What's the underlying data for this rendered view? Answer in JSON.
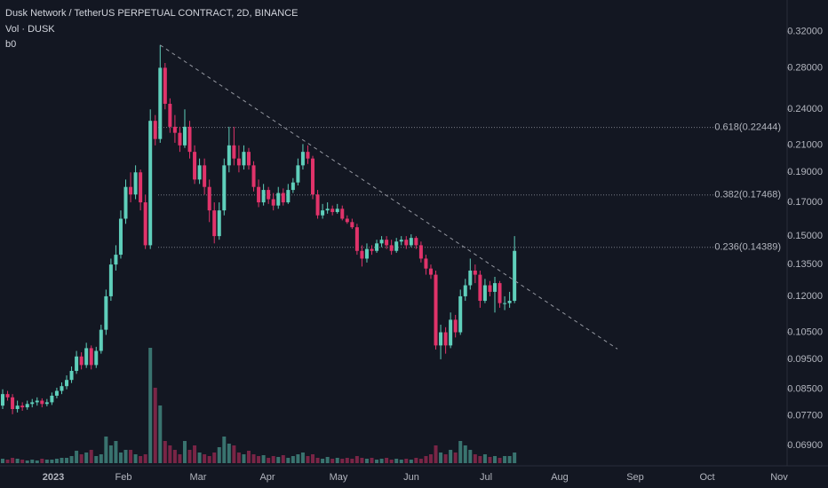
{
  "chart_data": {
    "type": "candlestick",
    "title": "Dusk Network / TetherUS PERPETUAL CONTRACT, 2D, BINANCE",
    "subtitle": "Vol · DUSK",
    "indicator_label": "b0",
    "up_color": "#5fcfbb",
    "down_color": "#e0336a",
    "yscale": "log",
    "ylim": [
      0.064,
      0.36
    ],
    "yticks": [
      {
        "value": 0.32,
        "label": "0.32000"
      },
      {
        "value": 0.28,
        "label": "0.28000"
      },
      {
        "value": 0.24,
        "label": "0.24000"
      },
      {
        "value": 0.21,
        "label": "0.21000"
      },
      {
        "value": 0.19,
        "label": "0.19000"
      },
      {
        "value": 0.17,
        "label": "0.17000"
      },
      {
        "value": 0.15,
        "label": "0.15000"
      },
      {
        "value": 0.135,
        "label": "0.13500"
      },
      {
        "value": 0.12,
        "label": "0.12000"
      },
      {
        "value": 0.105,
        "label": "0.10500"
      },
      {
        "value": 0.095,
        "label": "0.09500"
      },
      {
        "value": 0.085,
        "label": "0.08500"
      },
      {
        "value": 0.077,
        "label": "0.07700"
      },
      {
        "value": 0.069,
        "label": "0.06900"
      }
    ],
    "xtick_labels": [
      "2023",
      "Feb",
      "Mar",
      "Apr",
      "May",
      "Jun",
      "Jul",
      "Aug",
      "Sep",
      "Oct",
      "Nov"
    ],
    "fib_levels": [
      {
        "value": 0.22444,
        "label": "0.618(0.22444)"
      },
      {
        "value": 0.17468,
        "label": "0.382(0.17468)"
      },
      {
        "value": 0.14389,
        "label": "0.236(0.14389)"
      }
    ],
    "trendline": {
      "start": 0.3046,
      "end": 0.0987
    },
    "open": [
      0.08,
      0.0835,
      0.0825,
      0.079,
      0.08,
      0.0795,
      0.0805,
      0.081,
      0.0815,
      0.0805,
      0.081,
      0.083,
      0.0845,
      0.086,
      0.088,
      0.091,
      0.096,
      0.093,
      0.099,
      0.093,
      0.098,
      0.106,
      0.12,
      0.135,
      0.14,
      0.16,
      0.18,
      0.175,
      0.19,
      0.17,
      0.145,
      0.23,
      0.215,
      0.28,
      0.245,
      0.225,
      0.22,
      0.21,
      0.225,
      0.205,
      0.185,
      0.195,
      0.18,
      0.165,
      0.15,
      0.165,
      0.195,
      0.21,
      0.2,
      0.195,
      0.205,
      0.195,
      0.18,
      0.17,
      0.178,
      0.172,
      0.168,
      0.176,
      0.17,
      0.178,
      0.183,
      0.195,
      0.205,
      0.2,
      0.175,
      0.162,
      0.165,
      0.166,
      0.164,
      0.166,
      0.16,
      0.158,
      0.155,
      0.142,
      0.138,
      0.143,
      0.142,
      0.146,
      0.148,
      0.145,
      0.142,
      0.147,
      0.148,
      0.145,
      0.149,
      0.145,
      0.138,
      0.133,
      0.13,
      0.1,
      0.105,
      0.1,
      0.11,
      0.105,
      0.12,
      0.125,
      0.132,
      0.13,
      0.118,
      0.125,
      0.122,
      0.126,
      0.117,
      0.117,
      0.118
    ],
    "high": [
      0.085,
      0.0845,
      0.0835,
      0.0815,
      0.081,
      0.0815,
      0.082,
      0.0825,
      0.0822,
      0.082,
      0.084,
      0.0855,
      0.0872,
      0.0895,
      0.0925,
      0.098,
      0.0975,
      0.101,
      0.1,
      0.0995,
      0.108,
      0.123,
      0.138,
      0.145,
      0.165,
      0.185,
      0.19,
      0.195,
      0.192,
      0.175,
      0.24,
      0.235,
      0.3046,
      0.285,
      0.25,
      0.235,
      0.225,
      0.24,
      0.23,
      0.21,
      0.2,
      0.2,
      0.185,
      0.17,
      0.17,
      0.2,
      0.225,
      0.225,
      0.21,
      0.21,
      0.208,
      0.198,
      0.185,
      0.182,
      0.18,
      0.176,
      0.18,
      0.179,
      0.182,
      0.186,
      0.2,
      0.211,
      0.21,
      0.202,
      0.178,
      0.169,
      0.17,
      0.168,
      0.169,
      0.168,
      0.162,
      0.16,
      0.157,
      0.145,
      0.146,
      0.145,
      0.148,
      0.15,
      0.15,
      0.148,
      0.149,
      0.15,
      0.15,
      0.151,
      0.15,
      0.147,
      0.14,
      0.135,
      0.132,
      0.108,
      0.107,
      0.113,
      0.112,
      0.123,
      0.128,
      0.138,
      0.135,
      0.132,
      0.128,
      0.127,
      0.129,
      0.127,
      0.12,
      0.122,
      0.15
    ],
    "low": [
      0.079,
      0.0815,
      0.0775,
      0.078,
      0.0785,
      0.0788,
      0.0795,
      0.08,
      0.0795,
      0.0798,
      0.0802,
      0.0822,
      0.0835,
      0.085,
      0.087,
      0.09,
      0.0915,
      0.092,
      0.0915,
      0.092,
      0.097,
      0.104,
      0.118,
      0.132,
      0.138,
      0.157,
      0.17,
      0.172,
      0.165,
      0.143,
      0.143,
      0.21,
      0.212,
      0.24,
      0.22,
      0.212,
      0.205,
      0.208,
      0.2,
      0.182,
      0.182,
      0.175,
      0.158,
      0.146,
      0.148,
      0.162,
      0.19,
      0.195,
      0.19,
      0.192,
      0.192,
      0.177,
      0.167,
      0.168,
      0.169,
      0.165,
      0.166,
      0.168,
      0.169,
      0.176,
      0.181,
      0.192,
      0.196,
      0.172,
      0.16,
      0.16,
      0.163,
      0.162,
      0.163,
      0.159,
      0.157,
      0.154,
      0.14,
      0.134,
      0.136,
      0.14,
      0.141,
      0.144,
      0.143,
      0.14,
      0.141,
      0.145,
      0.143,
      0.144,
      0.143,
      0.136,
      0.13,
      0.128,
      0.0985,
      0.095,
      0.097,
      0.099,
      0.103,
      0.104,
      0.118,
      0.123,
      0.126,
      0.115,
      0.117,
      0.12,
      0.113,
      0.115,
      0.114,
      0.115,
      0.117
    ],
    "close": [
      0.0835,
      0.0825,
      0.079,
      0.08,
      0.0795,
      0.0805,
      0.081,
      0.0815,
      0.0805,
      0.081,
      0.083,
      0.0845,
      0.086,
      0.088,
      0.091,
      0.096,
      0.093,
      0.099,
      0.093,
      0.098,
      0.106,
      0.12,
      0.135,
      0.14,
      0.16,
      0.18,
      0.175,
      0.19,
      0.17,
      0.145,
      0.23,
      0.215,
      0.28,
      0.245,
      0.225,
      0.22,
      0.21,
      0.225,
      0.205,
      0.185,
      0.195,
      0.18,
      0.165,
      0.15,
      0.165,
      0.195,
      0.21,
      0.2,
      0.195,
      0.205,
      0.195,
      0.18,
      0.17,
      0.178,
      0.172,
      0.168,
      0.176,
      0.17,
      0.178,
      0.183,
      0.195,
      0.205,
      0.2,
      0.175,
      0.162,
      0.165,
      0.166,
      0.164,
      0.166,
      0.16,
      0.158,
      0.155,
      0.142,
      0.138,
      0.143,
      0.142,
      0.146,
      0.148,
      0.145,
      0.142,
      0.147,
      0.148,
      0.145,
      0.149,
      0.145,
      0.138,
      0.133,
      0.13,
      0.1,
      0.105,
      0.1,
      0.11,
      0.105,
      0.12,
      0.125,
      0.132,
      0.13,
      0.118,
      0.125,
      0.122,
      0.126,
      0.117,
      0.117,
      0.118,
      0.142
    ],
    "volume": [
      5,
      4,
      6,
      5,
      4,
      3,
      4,
      3,
      5,
      4,
      4,
      5,
      6,
      6,
      8,
      14,
      10,
      12,
      15,
      8,
      10,
      30,
      20,
      25,
      12,
      15,
      15,
      10,
      8,
      10,
      130,
      85,
      65,
      25,
      20,
      15,
      10,
      25,
      15,
      20,
      12,
      10,
      8,
      12,
      18,
      30,
      22,
      20,
      12,
      10,
      14,
      10,
      8,
      9,
      6,
      8,
      7,
      9,
      6,
      8,
      10,
      12,
      8,
      10,
      6,
      5,
      7,
      5,
      6,
      5,
      6,
      5,
      8,
      6,
      5,
      6,
      4,
      5,
      6,
      4,
      5,
      4,
      5,
      4,
      6,
      5,
      8,
      10,
      20,
      12,
      10,
      15,
      12,
      25,
      20,
      15,
      10,
      8,
      10,
      7,
      8,
      6,
      8,
      8,
      12
    ]
  }
}
